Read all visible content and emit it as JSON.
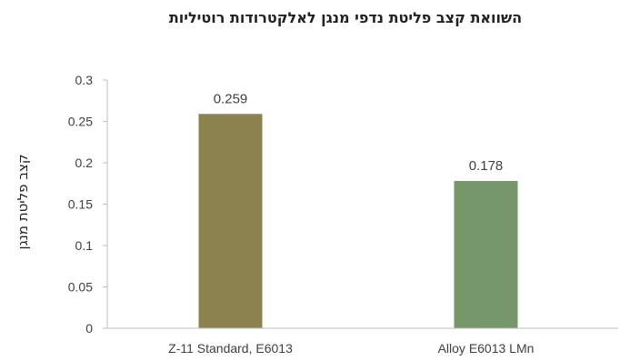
{
  "chart_data": {
    "type": "bar",
    "title": "השוואת קצב פליטת נדפי מנגן לאלקטרודות רוטיליות",
    "xlabel": "",
    "ylabel": "קצב פליטת מנגן",
    "categories": [
      "Z-11 Standard, E6013",
      "Alloy E6013 LMn"
    ],
    "values": [
      0.259,
      0.178
    ],
    "data_labels": [
      "0.259",
      "0.178"
    ],
    "bar_colors": [
      "#8b8250",
      "#749669"
    ],
    "ylim": [
      0,
      0.3
    ],
    "yticks": [
      0,
      0.05,
      0.1,
      0.15,
      0.2,
      0.25,
      0.3
    ],
    "ytick_labels": [
      "0",
      "0.05",
      "0.1",
      "0.15",
      "0.2",
      "0.25",
      "0.3"
    ],
    "grid": false,
    "legend": "none"
  }
}
